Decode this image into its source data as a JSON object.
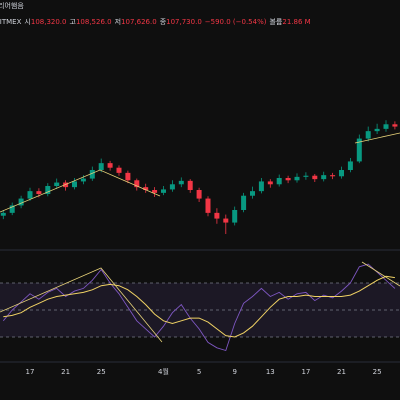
{
  "header": {
    "top": "리어햄음",
    "exchange": "BITMEX",
    "open_label": "시",
    "open": "108,320.0",
    "high_label": "고",
    "high": "108,526.0",
    "low_label": "저",
    "low": "107,626.0",
    "close_label": "종",
    "close": "107,730.0",
    "change": "−590.0 (−0.54%)",
    "volume_label": "볼륨",
    "volume": "21.86 M"
  },
  "chart_data": [
    {
      "type": "candlestick",
      "categories": [
        null,
        null,
        null,
        "17",
        null,
        null,
        null,
        "21",
        null,
        null,
        null,
        "25",
        null,
        null,
        null,
        null,
        null,
        null,
        "4월",
        null,
        null,
        null,
        "5",
        null,
        null,
        null,
        "9",
        null,
        null,
        null,
        "13",
        null,
        null,
        null,
        "17",
        null,
        null,
        null,
        "21",
        null,
        null,
        null,
        "25",
        null,
        null
      ],
      "open": [
        78000,
        78500,
        79800,
        81000,
        82300,
        81800,
        83200,
        83800,
        83000,
        84000,
        84500,
        86000,
        87200,
        86400,
        85500,
        84200,
        83000,
        82500,
        82000,
        82600,
        83500,
        84100,
        82500,
        81000,
        78500,
        77500,
        76800,
        79000,
        81500,
        82300,
        84000,
        83500,
        84600,
        84200,
        84800,
        85000,
        84400,
        85100,
        84900,
        86000,
        87500,
        91500,
        92800,
        93200,
        94000
      ],
      "high": [
        79000,
        80300,
        81500,
        82900,
        82800,
        83700,
        84500,
        84200,
        84600,
        85100,
        86600,
        88000,
        87600,
        86800,
        85900,
        84500,
        83600,
        83000,
        83200,
        84200,
        84700,
        84400,
        82900,
        81400,
        79300,
        78200,
        79600,
        82000,
        83100,
        84600,
        84400,
        85200,
        85000,
        85400,
        85600,
        85300,
        85700,
        85500,
        86600,
        88100,
        92200,
        93600,
        94100,
        94700,
        94500
      ],
      "low": [
        77400,
        78100,
        79300,
        80600,
        81200,
        81400,
        82700,
        82400,
        82600,
        83500,
        84100,
        85600,
        85900,
        85000,
        83700,
        82400,
        82000,
        81300,
        81600,
        82200,
        83000,
        82000,
        80400,
        77900,
        76600,
        74800,
        76300,
        78600,
        81000,
        81900,
        82900,
        83100,
        83700,
        83800,
        84300,
        83900,
        84000,
        84400,
        84500,
        85600,
        87200,
        91000,
        92300,
        92700,
        93100
      ],
      "close": [
        78500,
        79800,
        81000,
        82300,
        81800,
        83200,
        83800,
        83000,
        84000,
        84500,
        86000,
        87200,
        86400,
        85500,
        84200,
        83000,
        82500,
        82000,
        82600,
        83500,
        84100,
        82500,
        81000,
        78500,
        77500,
        76800,
        79000,
        81500,
        82300,
        84000,
        83500,
        84600,
        84200,
        84800,
        85000,
        84400,
        85100,
        84900,
        86000,
        87500,
        91500,
        92800,
        93200,
        94000,
        93600
      ],
      "ylim": [
        72000,
        100000
      ],
      "up_color": "#089981",
      "down_color": "#f23645"
    },
    {
      "type": "line",
      "series": [
        {
          "color": "#7e57c2",
          "values": [
            42,
            50,
            56,
            62,
            58,
            63,
            66,
            60,
            64,
            66,
            72,
            80,
            70,
            62,
            52,
            42,
            36,
            30,
            38,
            48,
            54,
            44,
            36,
            26,
            22,
            20,
            40,
            55,
            60,
            66,
            60,
            63,
            58,
            62,
            63,
            57,
            61,
            59,
            64,
            70,
            82,
            84,
            78,
            72,
            66
          ]
        },
        {
          "color": "#f0d264",
          "values": [
            45,
            46,
            48,
            52,
            55,
            58,
            60,
            61,
            62,
            63,
            65,
            68,
            69,
            68,
            65,
            60,
            54,
            47,
            42,
            40,
            42,
            44,
            44,
            41,
            36,
            31,
            30,
            33,
            38,
            45,
            52,
            58,
            60,
            60,
            61,
            60,
            60,
            60,
            60,
            61,
            64,
            68,
            72,
            75,
            74
          ]
        }
      ],
      "ylim": [
        0,
        100
      ],
      "levels": [
        70,
        50,
        30
      ],
      "band_color": "#7e57c2"
    }
  ]
}
